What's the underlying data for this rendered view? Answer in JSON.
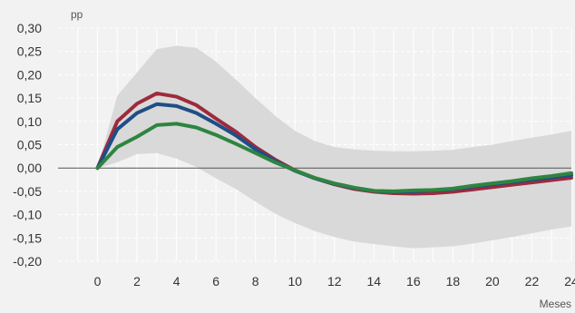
{
  "chart_data": {
    "type": "line",
    "ylabel": "pp",
    "xlabel": "Meses",
    "xlim": [
      -2,
      24
    ],
    "ylim": [
      -0.2,
      0.3
    ],
    "x_ticks": [
      0,
      2,
      4,
      6,
      8,
      10,
      12,
      14,
      16,
      18,
      20,
      22,
      24
    ],
    "x_tick_labels": [
      "0",
      "2",
      "4",
      "6",
      "8",
      "10",
      "12",
      "14",
      "16",
      "18",
      "20",
      "22",
      "24"
    ],
    "y_ticks": [
      0.3,
      0.25,
      0.2,
      0.15,
      0.1,
      0.05,
      0.0,
      -0.05,
      -0.1,
      -0.15,
      -0.2
    ],
    "y_tick_labels": [
      "0,30",
      "0,25",
      "0,20",
      "0,15",
      "0,10",
      "0,05",
      "0,00",
      "-0,05",
      "-0,10",
      "-0,15",
      "-0,20"
    ],
    "grid": true,
    "band": {
      "x": [
        0,
        1,
        2,
        3,
        4,
        5,
        6,
        7,
        8,
        9,
        10,
        11,
        12,
        13,
        14,
        15,
        16,
        17,
        18,
        19,
        20,
        21,
        22,
        23,
        24
      ],
      "upper": [
        0.0,
        0.155,
        0.205,
        0.255,
        0.262,
        0.258,
        0.228,
        0.19,
        0.15,
        0.112,
        0.08,
        0.058,
        0.045,
        0.04,
        0.037,
        0.036,
        0.036,
        0.037,
        0.039,
        0.045,
        0.05,
        0.058,
        0.065,
        0.072,
        0.08
      ],
      "lower": [
        0.0,
        0.012,
        0.03,
        0.032,
        0.02,
        0.002,
        -0.022,
        -0.045,
        -0.072,
        -0.098,
        -0.118,
        -0.135,
        -0.148,
        -0.158,
        -0.163,
        -0.168,
        -0.172,
        -0.17,
        -0.168,
        -0.162,
        -0.155,
        -0.148,
        -0.14,
        -0.132,
        -0.125
      ],
      "color": "#d9d9d9"
    },
    "series": [
      {
        "color": "#9e2a3c",
        "values": [
          0.0,
          0.1,
          0.138,
          0.16,
          0.153,
          0.135,
          0.106,
          0.078,
          0.045,
          0.018,
          -0.005,
          -0.022,
          -0.035,
          -0.045,
          -0.051,
          -0.054,
          -0.055,
          -0.054,
          -0.051,
          -0.046,
          -0.041,
          -0.036,
          -0.031,
          -0.026,
          -0.021
        ]
      },
      {
        "color": "#1f4e86",
        "values": [
          0.0,
          0.083,
          0.118,
          0.137,
          0.133,
          0.118,
          0.095,
          0.07,
          0.04,
          0.015,
          -0.006,
          -0.022,
          -0.034,
          -0.043,
          -0.049,
          -0.051,
          -0.05,
          -0.048,
          -0.045,
          -0.04,
          -0.035,
          -0.03,
          -0.025,
          -0.02,
          -0.015
        ]
      },
      {
        "color": "#2e8540",
        "values": [
          0.0,
          0.045,
          0.067,
          0.092,
          0.095,
          0.087,
          0.071,
          0.052,
          0.032,
          0.012,
          -0.005,
          -0.021,
          -0.033,
          -0.042,
          -0.049,
          -0.05,
          -0.048,
          -0.047,
          -0.044,
          -0.038,
          -0.033,
          -0.028,
          -0.022,
          -0.017,
          -0.011
        ]
      }
    ],
    "zero_line_color": "#555555"
  }
}
